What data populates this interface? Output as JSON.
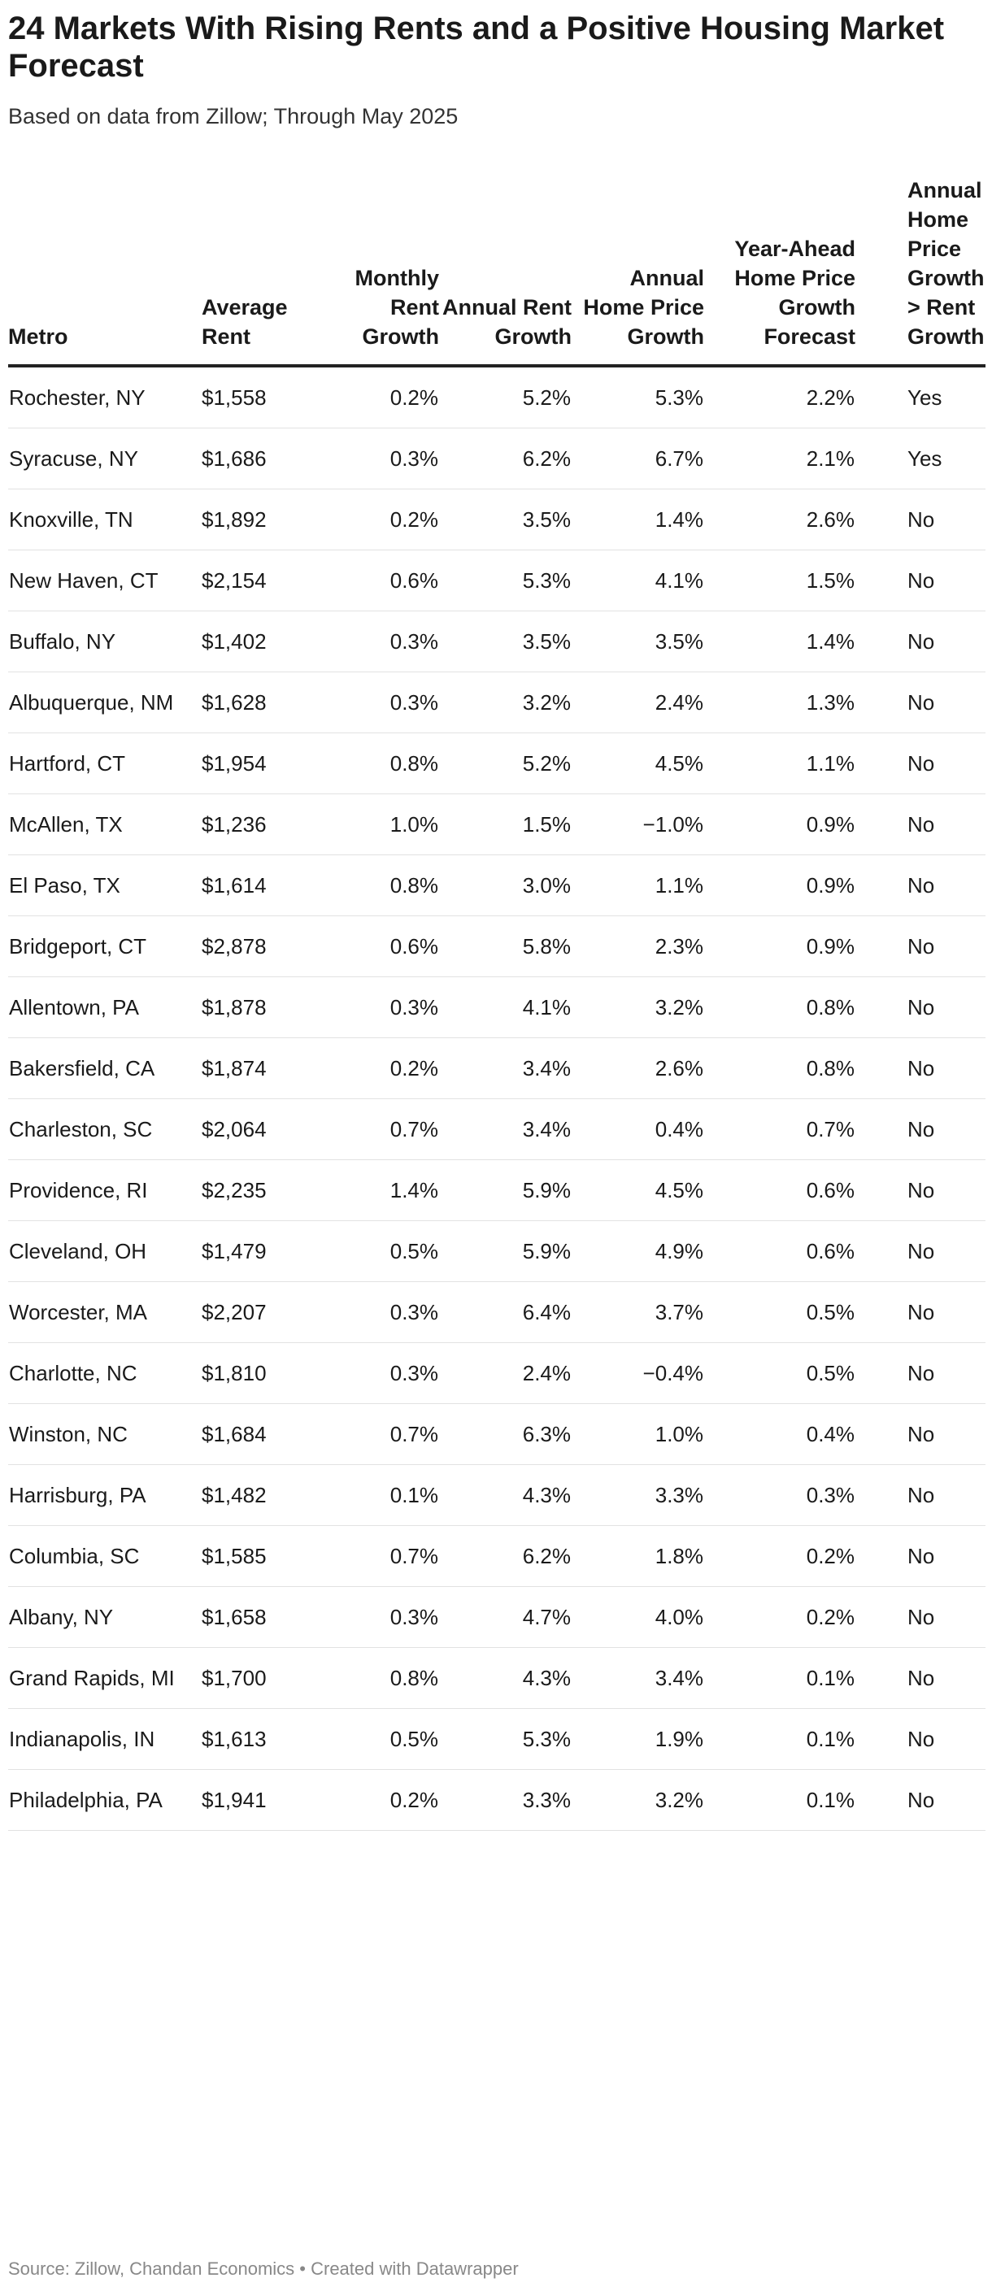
{
  "header": {
    "title": "24 Markets With Rising Rents and a Positive Housing Market Forecast",
    "subtitle": "Based on data from Zillow; Through May 2025"
  },
  "footer": {
    "source": "Source: Zillow, Chandan Economics • Created with Datawrapper"
  },
  "chart_data": {
    "type": "table",
    "title": "24 Markets With Rising Rents and a Positive Housing Market Forecast",
    "subtitle": "Based on data from Zillow; Through May 2025",
    "columns": [
      "Metro",
      "Average Rent",
      "Monthly Rent Growth",
      "Annual Rent Growth",
      "Annual Home Price Growth",
      "Year-Ahead Home Price Growth Forecast",
      "Annual Home Price Growth > Rent Growth"
    ],
    "rows": [
      [
        "Rochester, NY",
        "$1,558",
        "0.2%",
        "5.2%",
        "5.3%",
        "2.2%",
        "Yes"
      ],
      [
        "Syracuse, NY",
        "$1,686",
        "0.3%",
        "6.2%",
        "6.7%",
        "2.1%",
        "Yes"
      ],
      [
        "Knoxville, TN",
        "$1,892",
        "0.2%",
        "3.5%",
        "1.4%",
        "2.6%",
        "No"
      ],
      [
        "New Haven, CT",
        "$2,154",
        "0.6%",
        "5.3%",
        "4.1%",
        "1.5%",
        "No"
      ],
      [
        "Buffalo, NY",
        "$1,402",
        "0.3%",
        "3.5%",
        "3.5%",
        "1.4%",
        "No"
      ],
      [
        "Albuquerque, NM",
        "$1,628",
        "0.3%",
        "3.2%",
        "2.4%",
        "1.3%",
        "No"
      ],
      [
        "Hartford, CT",
        "$1,954",
        "0.8%",
        "5.2%",
        "4.5%",
        "1.1%",
        "No"
      ],
      [
        "McAllen, TX",
        "$1,236",
        "1.0%",
        "1.5%",
        "−1.0%",
        "0.9%",
        "No"
      ],
      [
        "El Paso, TX",
        "$1,614",
        "0.8%",
        "3.0%",
        "1.1%",
        "0.9%",
        "No"
      ],
      [
        "Bridgeport, CT",
        "$2,878",
        "0.6%",
        "5.8%",
        "2.3%",
        "0.9%",
        "No"
      ],
      [
        "Allentown, PA",
        "$1,878",
        "0.3%",
        "4.1%",
        "3.2%",
        "0.8%",
        "No"
      ],
      [
        "Bakersfield, CA",
        "$1,874",
        "0.2%",
        "3.4%",
        "2.6%",
        "0.8%",
        "No"
      ],
      [
        "Charleston, SC",
        "$2,064",
        "0.7%",
        "3.4%",
        "0.4%",
        "0.7%",
        "No"
      ],
      [
        "Providence, RI",
        "$2,235",
        "1.4%",
        "5.9%",
        "4.5%",
        "0.6%",
        "No"
      ],
      [
        "Cleveland, OH",
        "$1,479",
        "0.5%",
        "5.9%",
        "4.9%",
        "0.6%",
        "No"
      ],
      [
        "Worcester, MA",
        "$2,207",
        "0.3%",
        "6.4%",
        "3.7%",
        "0.5%",
        "No"
      ],
      [
        "Charlotte, NC",
        "$1,810",
        "0.3%",
        "2.4%",
        "−0.4%",
        "0.5%",
        "No"
      ],
      [
        "Winston, NC",
        "$1,684",
        "0.7%",
        "6.3%",
        "1.0%",
        "0.4%",
        "No"
      ],
      [
        "Harrisburg, PA",
        "$1,482",
        "0.1%",
        "4.3%",
        "3.3%",
        "0.3%",
        "No"
      ],
      [
        "Columbia, SC",
        "$1,585",
        "0.7%",
        "6.2%",
        "1.8%",
        "0.2%",
        "No"
      ],
      [
        "Albany, NY",
        "$1,658",
        "0.3%",
        "4.7%",
        "4.0%",
        "0.2%",
        "No"
      ],
      [
        "Grand Rapids, MI",
        "$1,700",
        "0.8%",
        "4.3%",
        "3.4%",
        "0.1%",
        "No"
      ],
      [
        "Indianapolis, IN",
        "$1,613",
        "0.5%",
        "5.3%",
        "1.9%",
        "0.1%",
        "No"
      ],
      [
        "Philadelphia, PA",
        "$1,941",
        "0.2%",
        "3.3%",
        "3.2%",
        "0.1%",
        "No"
      ]
    ]
  }
}
